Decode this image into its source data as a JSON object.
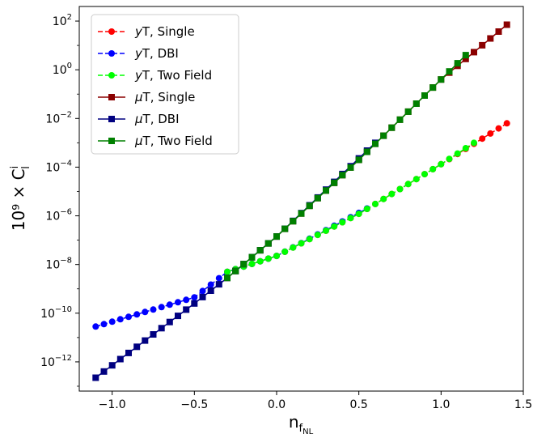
{
  "chart_data": {
    "type": "line",
    "xlabel": "n",
    "xlabel_sub": "f",
    "xlabel_subsub": "NL",
    "ylabel": "10⁹ × C",
    "ylabel_sup": "i",
    "ylabel_sub": "l",
    "xlim": [
      -1.2,
      1.5
    ],
    "ylim_log10": [
      -13.2,
      2.6
    ],
    "yscale": "log",
    "grid": false,
    "legend_position": "top-left",
    "x_ticks": [
      {
        "value": -1.0,
        "label": "−1.0"
      },
      {
        "value": -0.5,
        "label": "−0.5"
      },
      {
        "value": 0.0,
        "label": "0.0"
      },
      {
        "value": 0.5,
        "label": "0.5"
      },
      {
        "value": 1.0,
        "label": "1.0"
      },
      {
        "value": 1.5,
        "label": "1.5"
      }
    ],
    "y_ticks": [
      {
        "exp": 2,
        "base": "10",
        "sup": "2"
      },
      {
        "exp": 0,
        "base": "10",
        "sup": "0"
      },
      {
        "exp": -2,
        "base": "10",
        "sup": "−2"
      },
      {
        "exp": -4,
        "base": "10",
        "sup": "−4"
      },
      {
        "exp": -6,
        "base": "10",
        "sup": "−6"
      },
      {
        "exp": -8,
        "base": "10",
        "sup": "−8"
      },
      {
        "exp": -10,
        "base": "10",
        "sup": "−10"
      },
      {
        "exp": -12,
        "base": "10",
        "sup": "−12"
      }
    ],
    "series": [
      {
        "name": "yT, Single",
        "math_prefix": "y",
        "suffix": "T, Single",
        "color": "#ff0000",
        "marker": "circle",
        "linestyle": "dashed",
        "x_range": [
          -0.3,
          1.4
        ],
        "anchors": [
          [
            -0.3,
            -8.3
          ],
          [
            0.0,
            -7.65
          ],
          [
            0.5,
            -5.92
          ],
          [
            1.0,
            -3.88
          ],
          [
            1.4,
            -2.2
          ]
        ]
      },
      {
        "name": "yT, DBI",
        "math_prefix": "y",
        "suffix": "T, DBI",
        "color": "#0000ff",
        "marker": "circle",
        "linestyle": "dashed",
        "x_range": [
          -1.1,
          0.55
        ],
        "anchors": [
          [
            -1.1,
            -10.55
          ],
          [
            -0.5,
            -9.35
          ],
          [
            -0.3,
            -8.3
          ],
          [
            0.0,
            -7.65
          ],
          [
            0.55,
            -5.7
          ]
        ]
      },
      {
        "name": "yT, Two Field",
        "math_prefix": "y",
        "suffix": "T, Two Field",
        "color": "#00ff00",
        "marker": "circle",
        "linestyle": "dashed",
        "x_range": [
          -0.3,
          1.2
        ],
        "anchors": [
          [
            -0.3,
            -8.3
          ],
          [
            0.0,
            -7.65
          ],
          [
            0.5,
            -5.92
          ],
          [
            1.0,
            -3.88
          ],
          [
            1.2,
            -3.0
          ]
        ]
      },
      {
        "name": "μT, Single",
        "math_prefix": "μ",
        "suffix": "T, Single",
        "color": "#8b0000",
        "marker": "square",
        "linestyle": "solid",
        "x_range": [
          -0.3,
          1.4
        ],
        "anchors": [
          [
            -0.3,
            -8.55
          ],
          [
            0.0,
            -6.85
          ],
          [
            0.5,
            -3.7
          ],
          [
            1.0,
            -0.4
          ],
          [
            1.4,
            1.85
          ]
        ]
      },
      {
        "name": "μT, DBI",
        "math_prefix": "μ",
        "suffix": "T, DBI",
        "color": "#000080",
        "marker": "square",
        "linestyle": "solid",
        "x_range": [
          -1.1,
          0.6
        ],
        "anchors": [
          [
            -1.1,
            -12.65
          ],
          [
            -0.5,
            -9.6
          ],
          [
            -0.3,
            -8.55
          ],
          [
            0.0,
            -6.85
          ],
          [
            0.6,
            -3.0
          ]
        ]
      },
      {
        "name": "μT, Two Field",
        "math_prefix": "μ",
        "suffix": "T, Two Field",
        "color": "#008000",
        "marker": "square",
        "linestyle": "solid",
        "x_range": [
          -0.3,
          1.15
        ],
        "anchors": [
          [
            -0.3,
            -8.55
          ],
          [
            0.0,
            -6.85
          ],
          [
            0.5,
            -3.7
          ],
          [
            1.0,
            -0.4
          ],
          [
            1.15,
            0.6
          ]
        ]
      }
    ]
  }
}
